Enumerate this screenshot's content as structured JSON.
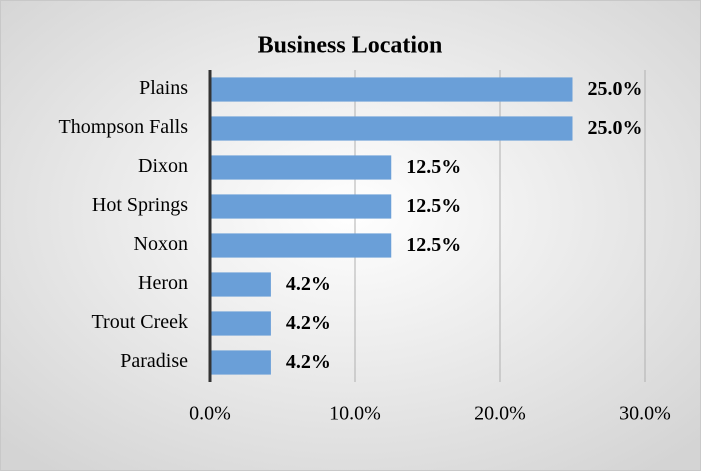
{
  "chart_data": {
    "type": "bar",
    "orientation": "horizontal",
    "title": "Business Location",
    "categories": [
      "Plains",
      "Thompson Falls",
      "Dixon",
      "Hot Springs",
      "Noxon",
      "Heron",
      "Trout Creek",
      "Paradise"
    ],
    "values": [
      25.0,
      25.0,
      12.5,
      12.5,
      12.5,
      4.2,
      4.2,
      4.2
    ],
    "value_labels": [
      "25.0%",
      "25.0%",
      "12.5%",
      "12.5%",
      "12.5%",
      "4.2%",
      "4.2%",
      "4.2%"
    ],
    "color": "#6a9fd8",
    "xlim": [
      0,
      30
    ],
    "xticks": [
      {
        "value": 0,
        "label": "0.0%"
      },
      {
        "value": 10,
        "label": "10.0%"
      },
      {
        "value": 20,
        "label": "20.0%"
      },
      {
        "value": 30,
        "label": "30.0%"
      }
    ],
    "grid": true
  }
}
